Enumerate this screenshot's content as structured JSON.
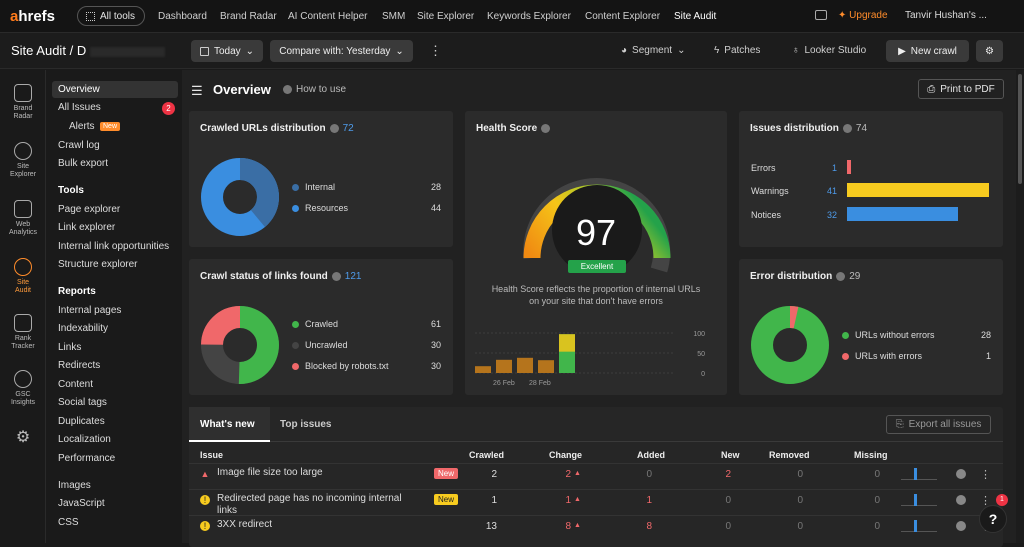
{
  "topbar": {
    "logo_a": "a",
    "logo_rest": "hrefs",
    "all_tools": "All tools",
    "nav": [
      "Dashboard",
      "Brand Radar",
      "AI Content Helper",
      "SMM",
      "Site Explorer",
      "Keywords Explorer",
      "Content Explorer",
      "Site Audit"
    ],
    "upgrade": "Upgrade",
    "user": "Tanvir Hushan's ..."
  },
  "subbar": {
    "title": "Site Audit",
    "sep": "/",
    "project": "D",
    "date": "Today",
    "compare": "Compare with: Yesterday",
    "segment": "Segment",
    "patches": "Patches",
    "looker": "Looker Studio",
    "new_crawl": "New crawl"
  },
  "rail": [
    {
      "label1": "Brand",
      "label2": "Radar"
    },
    {
      "label1": "Site",
      "label2": "Explorer"
    },
    {
      "label1": "Web",
      "label2": "Analytics"
    },
    {
      "label1": "Site",
      "label2": "Audit"
    },
    {
      "label1": "Rank",
      "label2": "Tracker"
    },
    {
      "label1": "GSC",
      "label2": "Insights"
    }
  ],
  "sidebar": {
    "overview": "Overview",
    "all_issues": "All Issues",
    "all_issues_badge": "2",
    "alerts": "Alerts",
    "alerts_badge": "New",
    "crawl_log": "Crawl log",
    "bulk_export": "Bulk export",
    "tools_h": "Tools",
    "tools": [
      "Page explorer",
      "Link explorer",
      "Internal link opportunities",
      "Structure explorer"
    ],
    "reports_h": "Reports",
    "reports": [
      "Internal pages",
      "Indexability",
      "Links",
      "Redirects",
      "Content",
      "Social tags",
      "Duplicates",
      "Localization",
      "Performance"
    ],
    "extra": [
      "Images",
      "JavaScript",
      "CSS"
    ]
  },
  "header": {
    "title": "Overview",
    "how_to_use": "How to use",
    "print": "Print to PDF"
  },
  "crawled": {
    "title": "Crawled URLs distribution",
    "count": "72",
    "items": [
      {
        "label": "Internal",
        "value": "28",
        "color": "#3a6ea5"
      },
      {
        "label": "Resources",
        "value": "44",
        "color": "#3a8ee0"
      }
    ]
  },
  "crawl_status": {
    "title": "Crawl status of links found",
    "count": "121",
    "items": [
      {
        "label": "Crawled",
        "value": "61",
        "color": "#41b64b"
      },
      {
        "label": "Uncrawled",
        "value": "30",
        "color": "#444444"
      },
      {
        "label": "Blocked by robots.txt",
        "value": "30",
        "color": "#f0686a"
      }
    ]
  },
  "health": {
    "title": "Health Score",
    "score": "97",
    "badge": "Excellent",
    "desc1": "Health Score reflects the proportion of internal URLs",
    "desc2": "on your site that don't have errors",
    "y_ticks": [
      "100",
      "50",
      "0"
    ],
    "x_ticks": [
      "26 Feb",
      "28 Feb"
    ],
    "bars": [
      17,
      33,
      38,
      32,
      97
    ]
  },
  "issues_dist": {
    "title": "Issues distribution",
    "count": "74",
    "items": [
      {
        "label": "Errors",
        "value": "1",
        "color": "#f0686a",
        "frac": 0.02
      },
      {
        "label": "Warnings",
        "value": "41",
        "color": "#f7cb1f",
        "frac": 0.97
      },
      {
        "label": "Notices",
        "value": "32",
        "color": "#3a8ee0",
        "frac": 0.76
      }
    ]
  },
  "error_dist": {
    "title": "Error distribution",
    "count": "29",
    "items": [
      {
        "label": "URLs without errors",
        "value": "28",
        "color": "#41b64b"
      },
      {
        "label": "URLs with errors",
        "value": "1",
        "color": "#f0686a"
      }
    ]
  },
  "table": {
    "tab_new": "What's new",
    "tab_top": "Top issues",
    "export": "Export all issues",
    "cols": [
      "Issue",
      "Crawled",
      "Change",
      "Added",
      "New",
      "Removed",
      "Missing"
    ],
    "rows": [
      {
        "issue": "Image file size too large",
        "badge": "New",
        "crawled": "2",
        "change": "2",
        "added": "0",
        "new": "2",
        "removed": "0",
        "missing": "0",
        "level": "error"
      },
      {
        "issue": "Redirected page has no incoming internal links",
        "badge": "New",
        "crawled": "1",
        "change": "1",
        "added": "1",
        "new": "0",
        "removed": "0",
        "missing": "0",
        "level": "warning"
      },
      {
        "issue": "3XX redirect",
        "badge": "",
        "crawled": "13",
        "change": "8",
        "added": "8",
        "new": "0",
        "removed": "0",
        "missing": "0",
        "level": "warning"
      }
    ]
  },
  "help": {
    "badge": "1",
    "label": "?"
  }
}
